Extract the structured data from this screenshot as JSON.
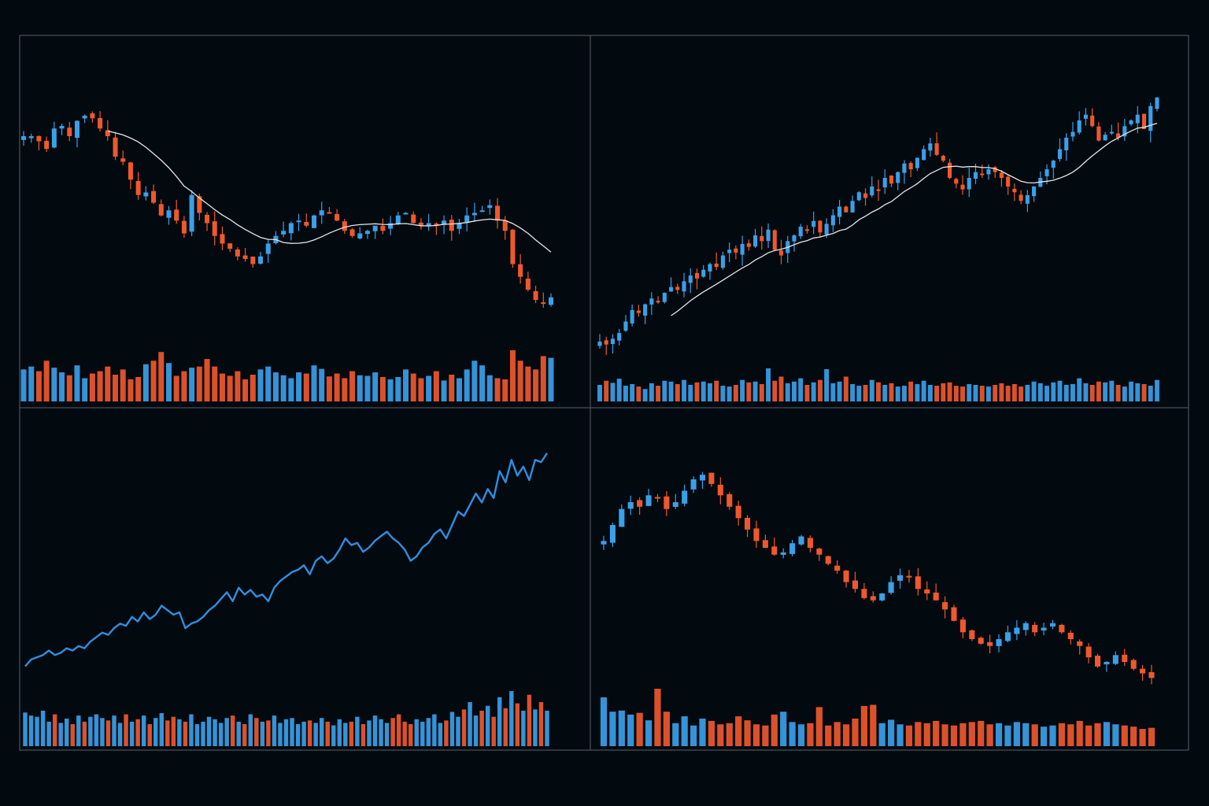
{
  "colors": {
    "background": "#020a10",
    "frame": "#56616b",
    "up": "#3aa0e8",
    "down": "#f0582c",
    "moving_average": "#e6e6e6",
    "line": "#2f8fe0"
  },
  "chart_data": [
    {
      "type": "candlestick",
      "position": "top-left",
      "ylim": [
        0,
        100
      ],
      "moving_average": true,
      "close": [
        76,
        76,
        74,
        71,
        79,
        80,
        76,
        82,
        84,
        83,
        79,
        76,
        68,
        66,
        59,
        53,
        54,
        50,
        45,
        47,
        43,
        38,
        53,
        46,
        42,
        37,
        34,
        32,
        29,
        28,
        26,
        29,
        34,
        37,
        39,
        42,
        43,
        41,
        45,
        47,
        46,
        43,
        39,
        37,
        38,
        39,
        41,
        39,
        42,
        45,
        46,
        42,
        41,
        42,
        41,
        43,
        39,
        42,
        45,
        46,
        47,
        49,
        43,
        39,
        26,
        21,
        16,
        12,
        11,
        13
      ],
      "volume": [
        55,
        60,
        52,
        70,
        58,
        50,
        45,
        62,
        40,
        48,
        52,
        60,
        46,
        55,
        38,
        42,
        64,
        70,
        85,
        66,
        44,
        52,
        58,
        60,
        73,
        60,
        48,
        44,
        52,
        38,
        46,
        55,
        60,
        50,
        45,
        40,
        50,
        48,
        62,
        56,
        43,
        48,
        40,
        52,
        45,
        44,
        50,
        42,
        38,
        42,
        55,
        48,
        40,
        44,
        52,
        36,
        46,
        40,
        55,
        70,
        62,
        45,
        40,
        38,
        88,
        70,
        60,
        55,
        78,
        75
      ]
    },
    {
      "type": "candlestick",
      "position": "top-right",
      "ylim": [
        0,
        100
      ],
      "moving_average": true,
      "close": [
        3,
        2,
        4,
        6,
        10,
        14,
        13,
        16,
        18,
        17,
        20,
        22,
        21,
        24,
        26,
        25,
        28,
        30,
        29,
        33,
        35,
        34,
        37,
        36,
        40,
        38,
        42,
        35,
        33,
        38,
        40,
        43,
        42,
        45,
        41,
        44,
        47,
        50,
        48,
        52,
        55,
        53,
        57,
        56,
        60,
        58,
        62,
        65,
        63,
        67,
        70,
        72,
        68,
        66,
        60,
        58,
        56,
        60,
        62,
        61,
        63,
        62,
        60,
        57,
        55,
        52,
        54,
        57,
        60,
        63,
        66,
        70,
        74,
        76,
        80,
        82,
        78,
        73,
        75,
        76,
        74,
        78,
        80,
        82,
        77,
        85,
        88
      ],
      "volume": [
        40,
        50,
        45,
        55,
        38,
        42,
        36,
        30,
        44,
        38,
        50,
        48,
        42,
        52,
        40,
        46,
        48,
        44,
        50,
        38,
        36,
        40,
        52,
        46,
        48,
        42,
        80,
        50,
        60,
        44,
        48,
        56,
        40,
        46,
        52,
        78,
        44,
        48,
        60,
        42,
        38,
        40,
        52,
        46,
        40,
        44,
        36,
        38,
        48,
        42,
        50,
        40,
        38,
        44,
        46,
        38,
        36,
        42,
        40,
        38,
        36,
        40,
        44,
        38,
        42,
        36,
        40,
        48,
        44,
        38,
        46,
        50,
        40,
        42,
        56,
        44,
        40,
        48,
        46,
        50,
        40,
        36,
        48,
        44,
        42,
        38,
        52
      ]
    },
    {
      "type": "line",
      "position": "bottom-left",
      "ylim": [
        0,
        100
      ],
      "values": [
        3,
        6,
        7,
        8,
        10,
        8,
        9,
        11,
        10,
        12,
        11,
        14,
        16,
        18,
        17,
        20,
        22,
        21,
        25,
        23,
        27,
        24,
        26,
        30,
        28,
        26,
        27,
        20,
        22,
        23,
        25,
        28,
        30,
        33,
        36,
        32,
        38,
        35,
        37,
        34,
        35,
        32,
        38,
        41,
        43,
        45,
        46,
        48,
        44,
        50,
        52,
        49,
        51,
        55,
        60,
        57,
        58,
        54,
        56,
        59,
        61,
        63,
        60,
        58,
        55,
        50,
        52,
        56,
        58,
        62,
        64,
        60,
        66,
        72,
        70,
        75,
        80,
        76,
        82,
        78,
        90,
        85,
        95,
        88,
        92,
        86,
        95,
        94,
        98
      ],
      "volume": [
        55,
        50,
        48,
        58,
        40,
        52,
        38,
        45,
        36,
        50,
        40,
        48,
        52,
        46,
        42,
        50,
        38,
        52,
        40,
        44,
        50,
        36,
        46,
        54,
        42,
        48,
        44,
        40,
        52,
        36,
        40,
        48,
        44,
        38,
        46,
        50,
        40,
        36,
        52,
        46,
        40,
        42,
        50,
        38,
        44,
        46,
        36,
        40,
        42,
        38,
        46,
        40,
        34,
        44,
        38,
        40,
        48,
        36,
        42,
        50,
        44,
        38,
        46,
        52,
        40,
        36,
        44,
        40,
        46,
        52,
        38,
        42,
        56,
        48,
        60,
        72,
        50,
        58,
        66,
        48,
        80,
        62,
        90,
        70,
        58,
        84,
        60,
        72,
        58
      ]
    },
    {
      "type": "candlestick",
      "position": "bottom-right",
      "ylim": [
        0,
        100
      ],
      "moving_average": false,
      "close": [
        63,
        70,
        77,
        80,
        78,
        83,
        82,
        77,
        80,
        85,
        90,
        92,
        88,
        83,
        78,
        73,
        68,
        63,
        60,
        57,
        58,
        62,
        65,
        60,
        57,
        53,
        50,
        45,
        42,
        38,
        37,
        40,
        45,
        48,
        47,
        42,
        40,
        37,
        33,
        28,
        23,
        20,
        18,
        17,
        20,
        23,
        25,
        27,
        23,
        25,
        27,
        23,
        20,
        17,
        12,
        8,
        10,
        13,
        10,
        7,
        5,
        3
      ],
      "volume": [
        85,
        60,
        62,
        55,
        58,
        45,
        100,
        60,
        40,
        52,
        36,
        48,
        44,
        38,
        40,
        52,
        45,
        38,
        36,
        55,
        60,
        42,
        38,
        40,
        68,
        36,
        42,
        38,
        48,
        70,
        72,
        40,
        46,
        38,
        36,
        42,
        40,
        44,
        38,
        36,
        40,
        42,
        44,
        38,
        40,
        36,
        42,
        40,
        38,
        34,
        36,
        40,
        38,
        44,
        36,
        40,
        42,
        38,
        36,
        34,
        30,
        32
      ]
    }
  ]
}
